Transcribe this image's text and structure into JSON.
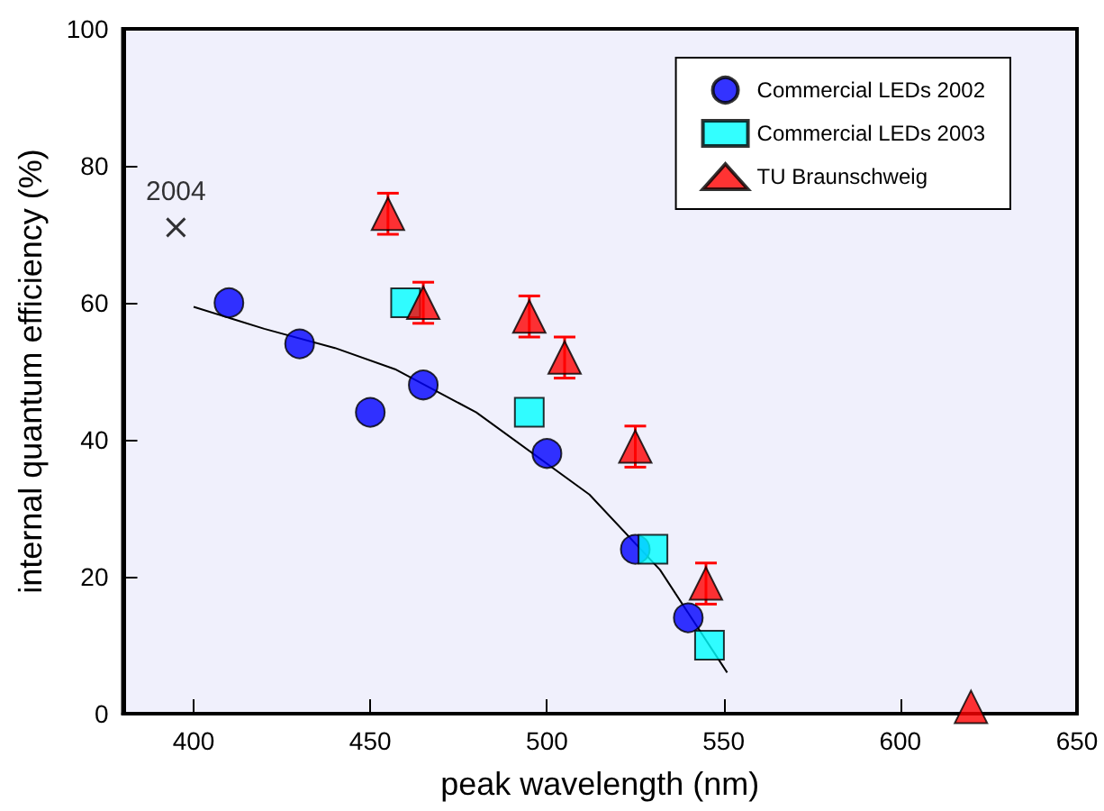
{
  "chart_data": {
    "type": "scatter",
    "xlabel": "peak wavelength (nm)",
    "ylabel": "internal quantum efficiency (%)",
    "xlim": [
      380,
      650
    ],
    "xticks": [
      400,
      450,
      500,
      550,
      600,
      650
    ],
    "ylim": [
      0,
      100
    ],
    "yticks": [
      0,
      20,
      40,
      60,
      80,
      100
    ],
    "grid": false,
    "legend": "top right",
    "series": [
      {
        "name": "Commercial LEDs 2002",
        "color": "#0000ff",
        "marker": "circle",
        "x": [
          410,
          430,
          450,
          465,
          500,
          525,
          540
        ],
        "values": [
          60,
          54,
          44,
          48,
          38,
          24,
          14
        ]
      },
      {
        "name": "Commercial LEDs 2003",
        "color": "#00ffff",
        "marker": "square",
        "x": [
          460,
          495,
          530,
          546
        ],
        "values": [
          60,
          44,
          24,
          10
        ]
      },
      {
        "name": "TU Braunschweig",
        "color": "#ff0000",
        "marker": "triangle",
        "x": [
          455,
          465,
          495,
          505,
          525,
          545,
          620
        ],
        "values": [
          73,
          60,
          58,
          52,
          39,
          19,
          1
        ],
        "errors": [
          3,
          3,
          3,
          3,
          3,
          3,
          null
        ]
      },
      {
        "color": "#000000",
        "marker": "cross",
        "x": [
          395
        ],
        "values": [
          71
        ]
      },
      {
        "type": "line",
        "color": "#000000",
        "marker": "none",
        "line_style": "solid",
        "x": [
          400,
          420,
          440,
          457,
          480,
          512,
          532,
          551
        ],
        "values": [
          59.4,
          56.2,
          53.4,
          50.3,
          44,
          32,
          21,
          6
        ]
      }
    ],
    "annotations": [
      {
        "text": "2004",
        "x": 395,
        "y": 71
      }
    ]
  }
}
